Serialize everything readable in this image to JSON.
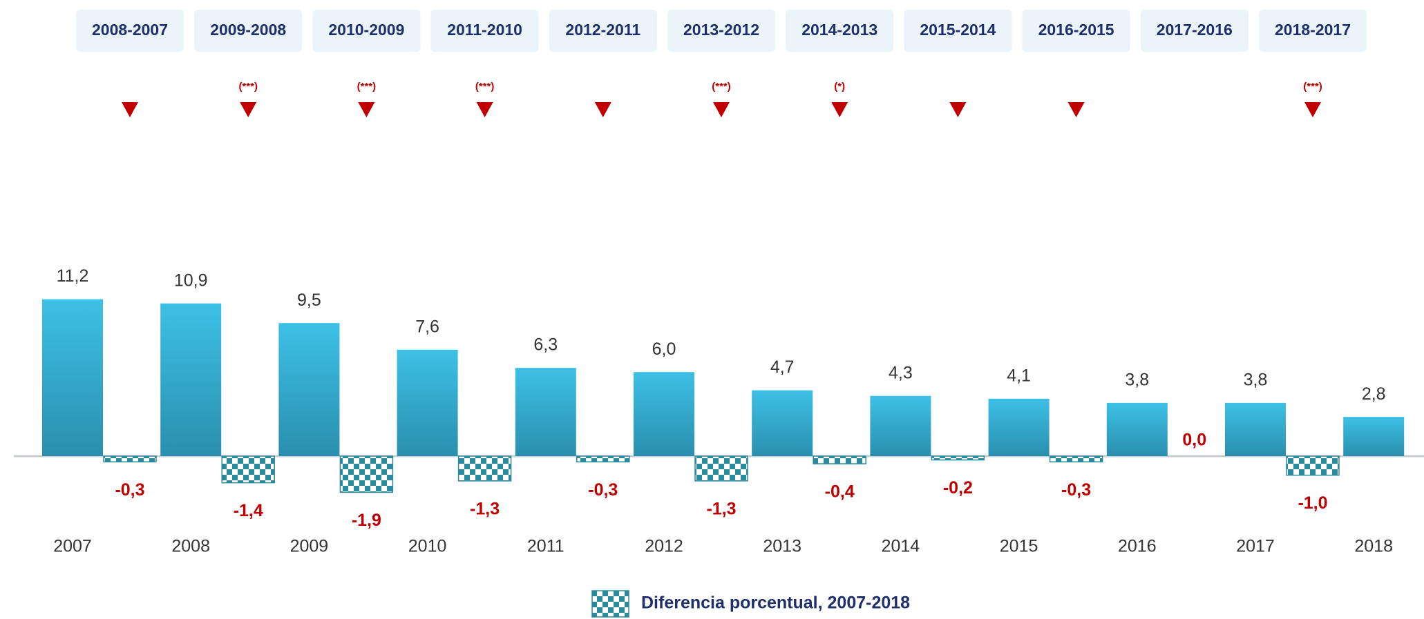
{
  "chart_data": {
    "type": "bar",
    "categories": [
      "2007",
      "2008",
      "2009",
      "2010",
      "2011",
      "2012",
      "2013",
      "2014",
      "2015",
      "2016",
      "2017",
      "2018"
    ],
    "values": [
      11.2,
      10.9,
      9.5,
      7.6,
      6.3,
      6.0,
      4.7,
      4.3,
      4.1,
      3.8,
      3.8,
      2.8
    ],
    "value_labels": [
      "11,2",
      "10,9",
      "9,5",
      "7,6",
      "6,3",
      "6,0",
      "4,7",
      "4,3",
      "4,1",
      "3,8",
      "3,8",
      "2,8"
    ],
    "color": "#38b4d8",
    "differences": {
      "name": "Diferencia porcentual, 2007-2018",
      "color": "#2a8a9c",
      "periods": [
        "2008-2007",
        "2009-2008",
        "2010-2009",
        "2011-2010",
        "2012-2011",
        "2013-2012",
        "2014-2013",
        "2015-2014",
        "2016-2015",
        "2017-2016",
        "2018-2017"
      ],
      "values": [
        -0.3,
        -1.4,
        -1.9,
        -1.3,
        -0.3,
        -1.3,
        -0.4,
        -0.2,
        -0.3,
        0.0,
        -1.0
      ],
      "value_labels": [
        "-0,3",
        "-1,4",
        "-1,9",
        "-1,3",
        "-0,3",
        "-1,3",
        "-0,4",
        "-0,2",
        "-0,3",
        "0,0",
        "-1,0"
      ],
      "significance": [
        null,
        "(***)",
        "(***)",
        "(***)",
        null,
        "(***)",
        "(*)",
        null,
        null,
        null,
        "(***)"
      ]
    }
  }
}
